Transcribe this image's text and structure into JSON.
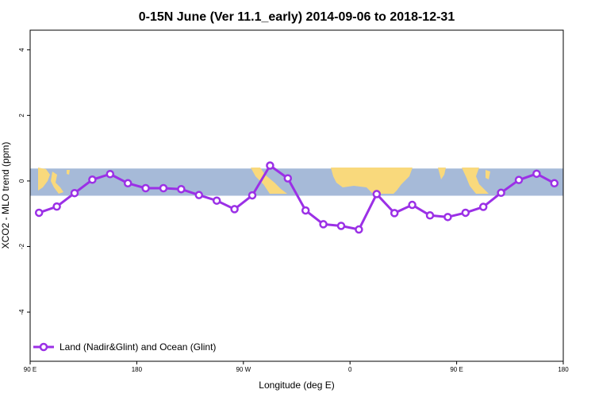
{
  "chart_data": {
    "type": "line",
    "title": "0-15N June (Ver 11.1_early)   2014-09-06 to 2018-12-31",
    "xlabel": "Longitude (deg E)",
    "ylabel": "XCO2 - MLO trend (ppm)",
    "x_ticks": [
      {
        "value": 90,
        "label": "90 E"
      },
      {
        "value": 180,
        "label": "180"
      },
      {
        "value": 270,
        "label": "90 W"
      },
      {
        "value": 360,
        "label": "0"
      },
      {
        "value": 450,
        "label": "90 E"
      },
      {
        "value": 540,
        "label": "180"
      }
    ],
    "y_ticks": [
      {
        "value": 4,
        "label": "4"
      },
      {
        "value": 2,
        "label": "2"
      },
      {
        "value": 0,
        "label": "0"
      },
      {
        "value": -2,
        "label": "-2"
      },
      {
        "value": -4,
        "label": "-4"
      }
    ],
    "xlim": [
      90,
      540
    ],
    "ylim": [
      -5.5,
      4.6
    ],
    "band_ylim": [
      -0.45,
      0.38
    ],
    "grid": false,
    "legend_position": "bottom-left",
    "colors": {
      "series": "#9b30e6",
      "marker_fill": "#ffffff",
      "ocean": "#a6bad8",
      "land": "#f9d97c"
    },
    "series": [
      {
        "name": "Land (Nadir&Glint) and Ocean (Glint)",
        "x": [
          97.5,
          112.5,
          127.5,
          142.5,
          157.5,
          172.5,
          187.5,
          202.5,
          217.5,
          232.5,
          247.5,
          262.5,
          277.5,
          292.5,
          307.5,
          322.5,
          337.5,
          352.5,
          367.5,
          382.5,
          397.5,
          412.5,
          427.5,
          442.5,
          457.5,
          472.5,
          487.5,
          502.5,
          517.5,
          532.5
        ],
        "y": [
          -0.97,
          -0.78,
          -0.37,
          0.04,
          0.21,
          -0.07,
          -0.22,
          -0.22,
          -0.25,
          -0.43,
          -0.6,
          -0.86,
          -0.44,
          0.47,
          0.08,
          -0.9,
          -1.32,
          -1.37,
          -1.48,
          -0.4,
          -0.98,
          -0.73,
          -1.05,
          -1.1,
          -0.97,
          -0.79,
          -0.36,
          0.03,
          0.22,
          -0.07
        ]
      }
    ]
  }
}
